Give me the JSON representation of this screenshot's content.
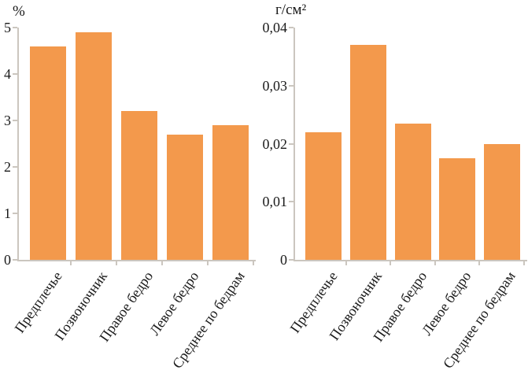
{
  "figure": {
    "background": "#ffffff",
    "bar_color": "#f3994c",
    "axis_color": "#cbc6bf",
    "text_color": "#1a1a1a"
  },
  "chart_data": [
    {
      "type": "bar",
      "unit_label": "%",
      "categories": [
        "Предплечье",
        "Позвоночник",
        "Правое бедро",
        "Левое бедро",
        "Среднее по бедрам"
      ],
      "values": [
        4.6,
        4.9,
        3.2,
        2.7,
        2.9
      ],
      "ylim": [
        0,
        5
      ],
      "ytick_labels": [
        "0",
        "1",
        "2",
        "3",
        "4",
        "5"
      ],
      "grid": false,
      "legend": false
    },
    {
      "type": "bar",
      "unit_label": "г/см²",
      "categories": [
        "Предплечье",
        "Позвоночник",
        "Правое бедро",
        "Левое бедро",
        "Среднее по бедрам"
      ],
      "values": [
        0.022,
        0.037,
        0.0235,
        0.0175,
        0.02
      ],
      "ylim": [
        0,
        0.04
      ],
      "ytick_labels": [
        "0",
        "0,01",
        "0,02",
        "0,03",
        "0,04"
      ],
      "grid": false,
      "legend": false
    }
  ]
}
